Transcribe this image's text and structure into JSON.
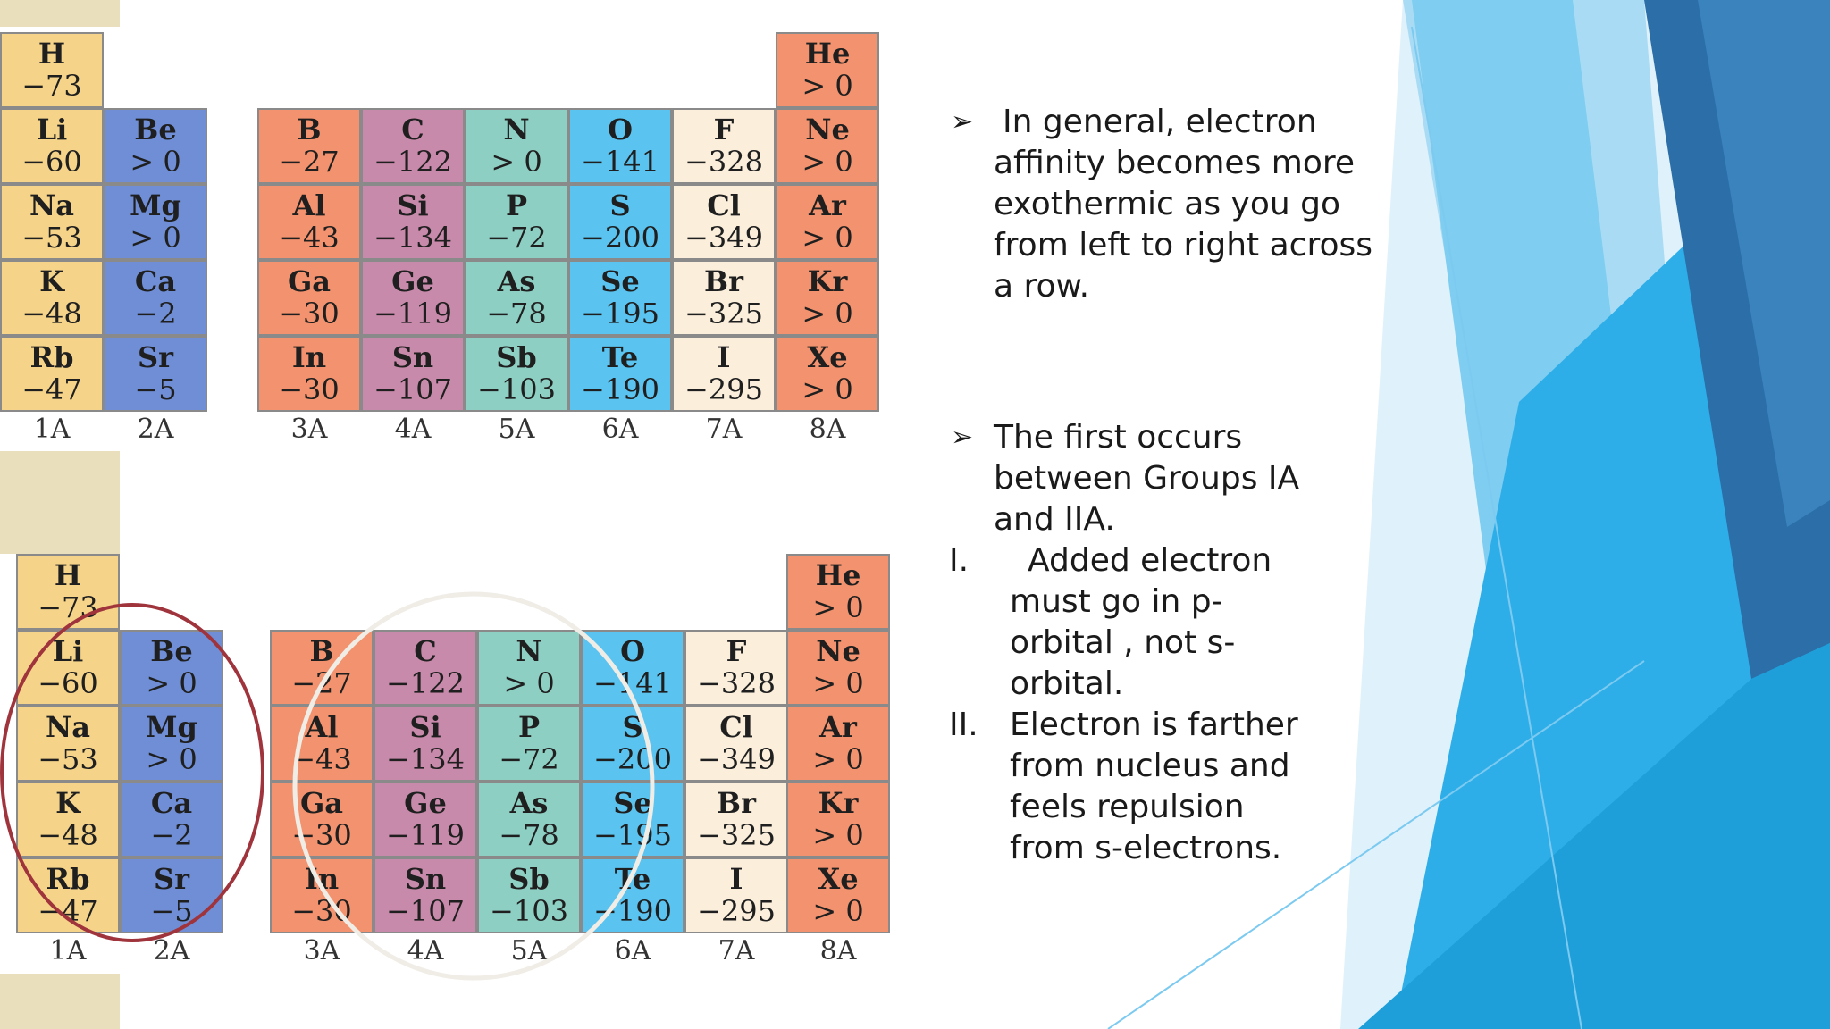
{
  "colors": {
    "group_1a": "#f5d48a",
    "group_2a": "#6f8ed6",
    "group_3a": "#f2926e",
    "group_4a": "#c88aaa",
    "group_5a": "#8ecfc4",
    "group_6a": "#5bc3ef",
    "group_7a": "#fbefdc",
    "group_8a": "#f2926e",
    "red_circle": "#a0343c",
    "white_circle": "#f0ece6"
  },
  "table": {
    "columns": [
      {
        "group": "1A",
        "cells": [
          [
            "H",
            "−73"
          ],
          [
            "Li",
            "−60"
          ],
          [
            "Na",
            "−53"
          ],
          [
            "K",
            "−48"
          ],
          [
            "Rb",
            "−47"
          ]
        ]
      },
      {
        "group": "2A",
        "cells": [
          [
            "Be",
            "> 0"
          ],
          [
            "Mg",
            "> 0"
          ],
          [
            "Ca",
            "−2"
          ],
          [
            "Sr",
            "−5"
          ]
        ]
      },
      {
        "group": "3A",
        "cells": [
          [
            "B",
            "−27"
          ],
          [
            "Al",
            "−43"
          ],
          [
            "Ga",
            "−30"
          ],
          [
            "In",
            "−30"
          ]
        ]
      },
      {
        "group": "4A",
        "cells": [
          [
            "C",
            "−122"
          ],
          [
            "Si",
            "−134"
          ],
          [
            "Ge",
            "−119"
          ],
          [
            "Sn",
            "−107"
          ]
        ]
      },
      {
        "group": "5A",
        "cells": [
          [
            "N",
            "> 0"
          ],
          [
            "P",
            "−72"
          ],
          [
            "As",
            "−78"
          ],
          [
            "Sb",
            "−103"
          ]
        ]
      },
      {
        "group": "6A",
        "cells": [
          [
            "O",
            "−141"
          ],
          [
            "S",
            "−200"
          ],
          [
            "Se",
            "−195"
          ],
          [
            "Te",
            "−190"
          ]
        ]
      },
      {
        "group": "7A",
        "cells": [
          [
            "F",
            "−328"
          ],
          [
            "Cl",
            "−349"
          ],
          [
            "Br",
            "−325"
          ],
          [
            "I",
            "−295"
          ]
        ]
      },
      {
        "group": "8A",
        "cells": [
          [
            "He",
            "> 0"
          ],
          [
            "Ne",
            "> 0"
          ],
          [
            "Ar",
            "> 0"
          ],
          [
            "Kr",
            "> 0"
          ],
          [
            "Xe",
            "> 0"
          ]
        ]
      }
    ]
  },
  "text": {
    "bullet1_lines": [
      "In general, electron",
      "affinity becomes more",
      "exothermic as you go",
      "from left to right across",
      "a row."
    ],
    "bullet2_lines": [
      "The first occurs",
      "between Groups IA",
      "and IIA."
    ],
    "point1_num": "I.",
    "point1_lines": [
      "Added electron",
      "must go in p-",
      "orbital , not s-",
      "orbital."
    ],
    "point2_num": "II.",
    "point2_lines": [
      "Electron is farther",
      "from nucleus and",
      "feels repulsion",
      "from s-electrons."
    ]
  }
}
